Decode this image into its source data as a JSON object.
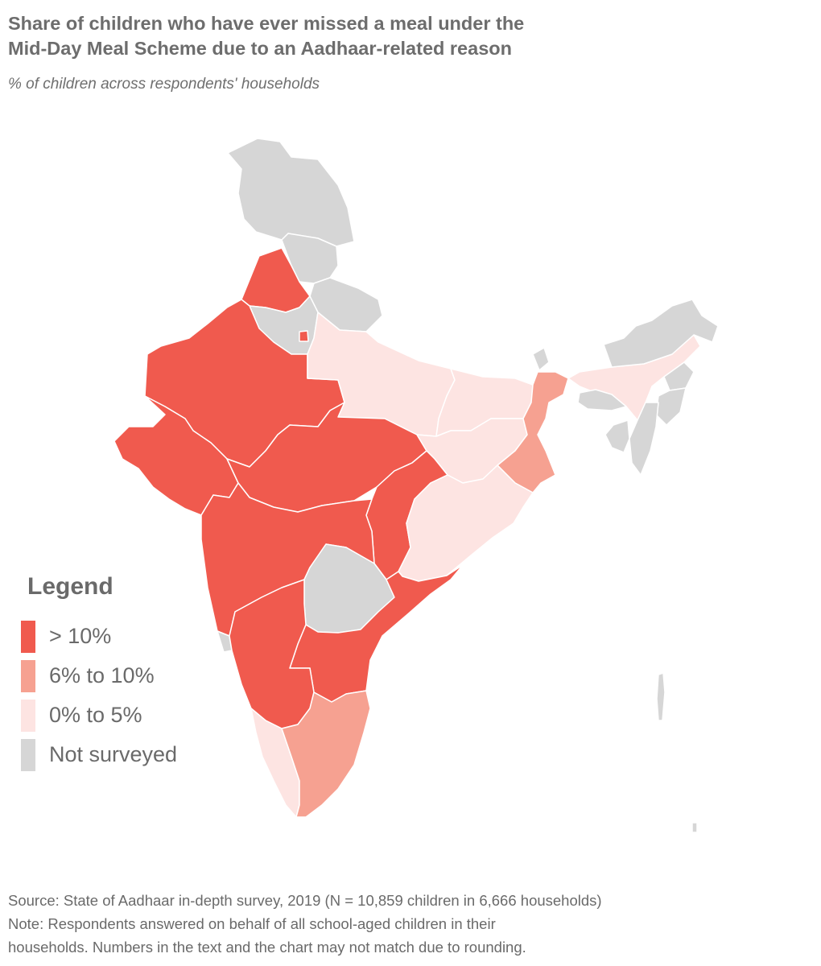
{
  "title_lines": [
    "Share of children who have ever missed a meal under the",
    "Mid-Day Meal Scheme due to an Aadhaar-related reason"
  ],
  "subtitle": "% of children across respondents' households",
  "colors": {
    "over_10": "#f05a4e",
    "six_to_ten": "#f6a191",
    "zero_to_five": "#fde4e2",
    "not_surveyed": "#d6d6d6",
    "border": "#ffffff"
  },
  "legend": {
    "title": "Legend",
    "items": [
      {
        "label": "> 10%",
        "category": "over_10"
      },
      {
        "label": "6% to 10%",
        "category": "six_to_ten"
      },
      {
        "label": "0% to 5%",
        "category": "zero_to_five"
      },
      {
        "label": "Not surveyed",
        "category": "not_surveyed"
      }
    ]
  },
  "regions": [
    {
      "name": "Jammu and Kashmir",
      "category": "not_surveyed"
    },
    {
      "name": "Himachal Pradesh",
      "category": "not_surveyed"
    },
    {
      "name": "Punjab",
      "category": "over_10"
    },
    {
      "name": "Uttarakhand",
      "category": "not_surveyed"
    },
    {
      "name": "Haryana",
      "category": "not_surveyed"
    },
    {
      "name": "Delhi",
      "category": "over_10"
    },
    {
      "name": "Rajasthan",
      "category": "over_10"
    },
    {
      "name": "Uttar Pradesh",
      "category": "zero_to_five"
    },
    {
      "name": "Bihar",
      "category": "zero_to_five"
    },
    {
      "name": "Gujarat",
      "category": "over_10"
    },
    {
      "name": "Madhya Pradesh",
      "category": "over_10"
    },
    {
      "name": "Jharkhand",
      "category": "zero_to_five"
    },
    {
      "name": "West Bengal",
      "category": "six_to_ten"
    },
    {
      "name": "Sikkim",
      "category": "not_surveyed"
    },
    {
      "name": "Chhattisgarh",
      "category": "over_10"
    },
    {
      "name": "Odisha",
      "category": "zero_to_five"
    },
    {
      "name": "Maharashtra",
      "category": "over_10"
    },
    {
      "name": "Telangana",
      "category": "not_surveyed"
    },
    {
      "name": "Andhra Pradesh",
      "category": "over_10"
    },
    {
      "name": "Goa",
      "category": "not_surveyed"
    },
    {
      "name": "Karnataka",
      "category": "over_10"
    },
    {
      "name": "Kerala",
      "category": "zero_to_five"
    },
    {
      "name": "Tamil Nadu",
      "category": "six_to_ten"
    },
    {
      "name": "Assam",
      "category": "zero_to_five"
    },
    {
      "name": "Arunachal Pradesh",
      "category": "not_surveyed"
    },
    {
      "name": "Meghalaya",
      "category": "not_surveyed"
    },
    {
      "name": "Nagaland",
      "category": "not_surveyed"
    },
    {
      "name": "Manipur",
      "category": "not_surveyed"
    },
    {
      "name": "Mizoram",
      "category": "not_surveyed"
    },
    {
      "name": "Tripura",
      "category": "not_surveyed"
    },
    {
      "name": "Andaman and Nicobar Islands",
      "category": "not_surveyed"
    }
  ],
  "footer": {
    "source": "Source: State of Aadhaar in-depth survey, 2019 (N = 10,859 children in 6,666 households)",
    "note_lines": [
      "Note: Respondents answered on behalf of all school-aged children in their",
      "households. Numbers in the text and the chart may not match due to rounding."
    ]
  }
}
